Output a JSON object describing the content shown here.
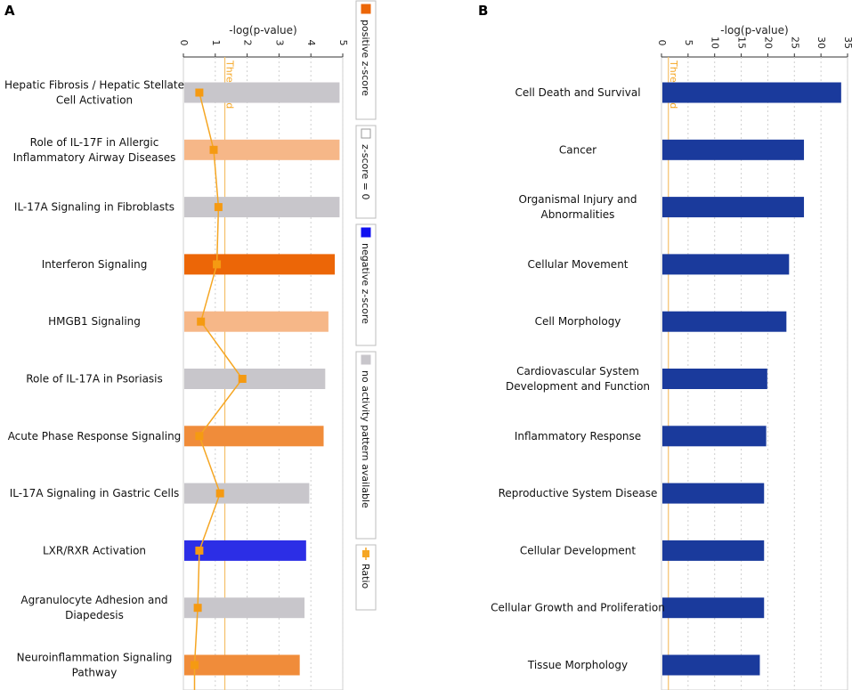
{
  "chart_data": [
    {
      "panel_label": "A",
      "type": "bar",
      "orientation": "horizontal",
      "xlabel": "-log(p-value)",
      "xlim": [
        0,
        5
      ],
      "xticks": [
        "0",
        "1",
        "2",
        "3",
        "4",
        "5"
      ],
      "threshold": 1.3,
      "threshold_label": "Threshold",
      "categories": [
        [
          "Hepatic Fibrosis / Hepatic Stellate",
          "Cell Activation"
        ],
        [
          "Role of IL-17F in Allergic",
          "Inflammatory Airway Diseases"
        ],
        [
          "IL-17A Signaling in Fibroblasts"
        ],
        [
          "Interferon Signaling"
        ],
        [
          "HMGB1 Signaling"
        ],
        [
          "Role of IL-17A in Psoriasis"
        ],
        [
          "Acute Phase Response Signaling"
        ],
        [
          "IL-17A Signaling in Gastric Cells"
        ],
        [
          "LXR/RXR Activation"
        ],
        [
          "Agranulocyte Adhesion and",
          "Diapedesis"
        ],
        [
          "Neuroinflammation Signaling",
          "Pathway"
        ]
      ],
      "values": [
        4.9,
        4.9,
        4.9,
        4.75,
        4.55,
        4.45,
        4.4,
        3.95,
        3.85,
        3.8,
        3.65
      ],
      "bar_colors": [
        "#c8c6cb",
        "#f6b788",
        "#c8c6cb",
        "#ec6607",
        "#f6b788",
        "#c8c6cb",
        "#f08c3a",
        "#c8c6cb",
        "#2c2ee6",
        "#c8c6cb",
        "#f08c3a"
      ],
      "ratio_series": {
        "name": "Ratio",
        "values": [
          0.5,
          0.95,
          1.1,
          1.05,
          0.55,
          1.85,
          0.5,
          1.15,
          0.5,
          0.45,
          0.35
        ]
      },
      "legend": [
        {
          "label": "positive z-score",
          "color": "#ec6607"
        },
        {
          "label": "z-score = 0",
          "color": "#ffffff"
        },
        {
          "label": "negative z-score",
          "color": "#1010f0"
        },
        {
          "label": "no activity pattern available",
          "color": "#c8c6cb"
        },
        {
          "label": "Ratio",
          "color": "#f5a623"
        }
      ]
    },
    {
      "panel_label": "B",
      "type": "bar",
      "orientation": "horizontal",
      "xlabel": "-log(p-value)",
      "xlim": [
        0,
        35
      ],
      "xticks": [
        "0",
        "5",
        "10",
        "15",
        "20",
        "25",
        "30",
        "35"
      ],
      "threshold": 1.3,
      "threshold_label": "Threshold",
      "categories": [
        [
          "Cell Death and Survival"
        ],
        [
          "Cancer"
        ],
        [
          "Organismal Injury and",
          "Abnormalities"
        ],
        [
          "Cellular Movement"
        ],
        [
          "Cell Morphology"
        ],
        [
          "Cardiovascular System",
          "Development and Function"
        ],
        [
          "Inflammatory Response"
        ],
        [
          "Reproductive System Disease"
        ],
        [
          "Cellular Development"
        ],
        [
          "Cellular Growth and Proliferation"
        ],
        [
          "Tissue Morphology"
        ]
      ],
      "values": [
        33.8,
        26.8,
        26.8,
        24.0,
        23.5,
        19.9,
        19.7,
        19.3,
        19.3,
        19.3,
        18.5
      ],
      "bar_color": "#1a3a9c"
    }
  ]
}
